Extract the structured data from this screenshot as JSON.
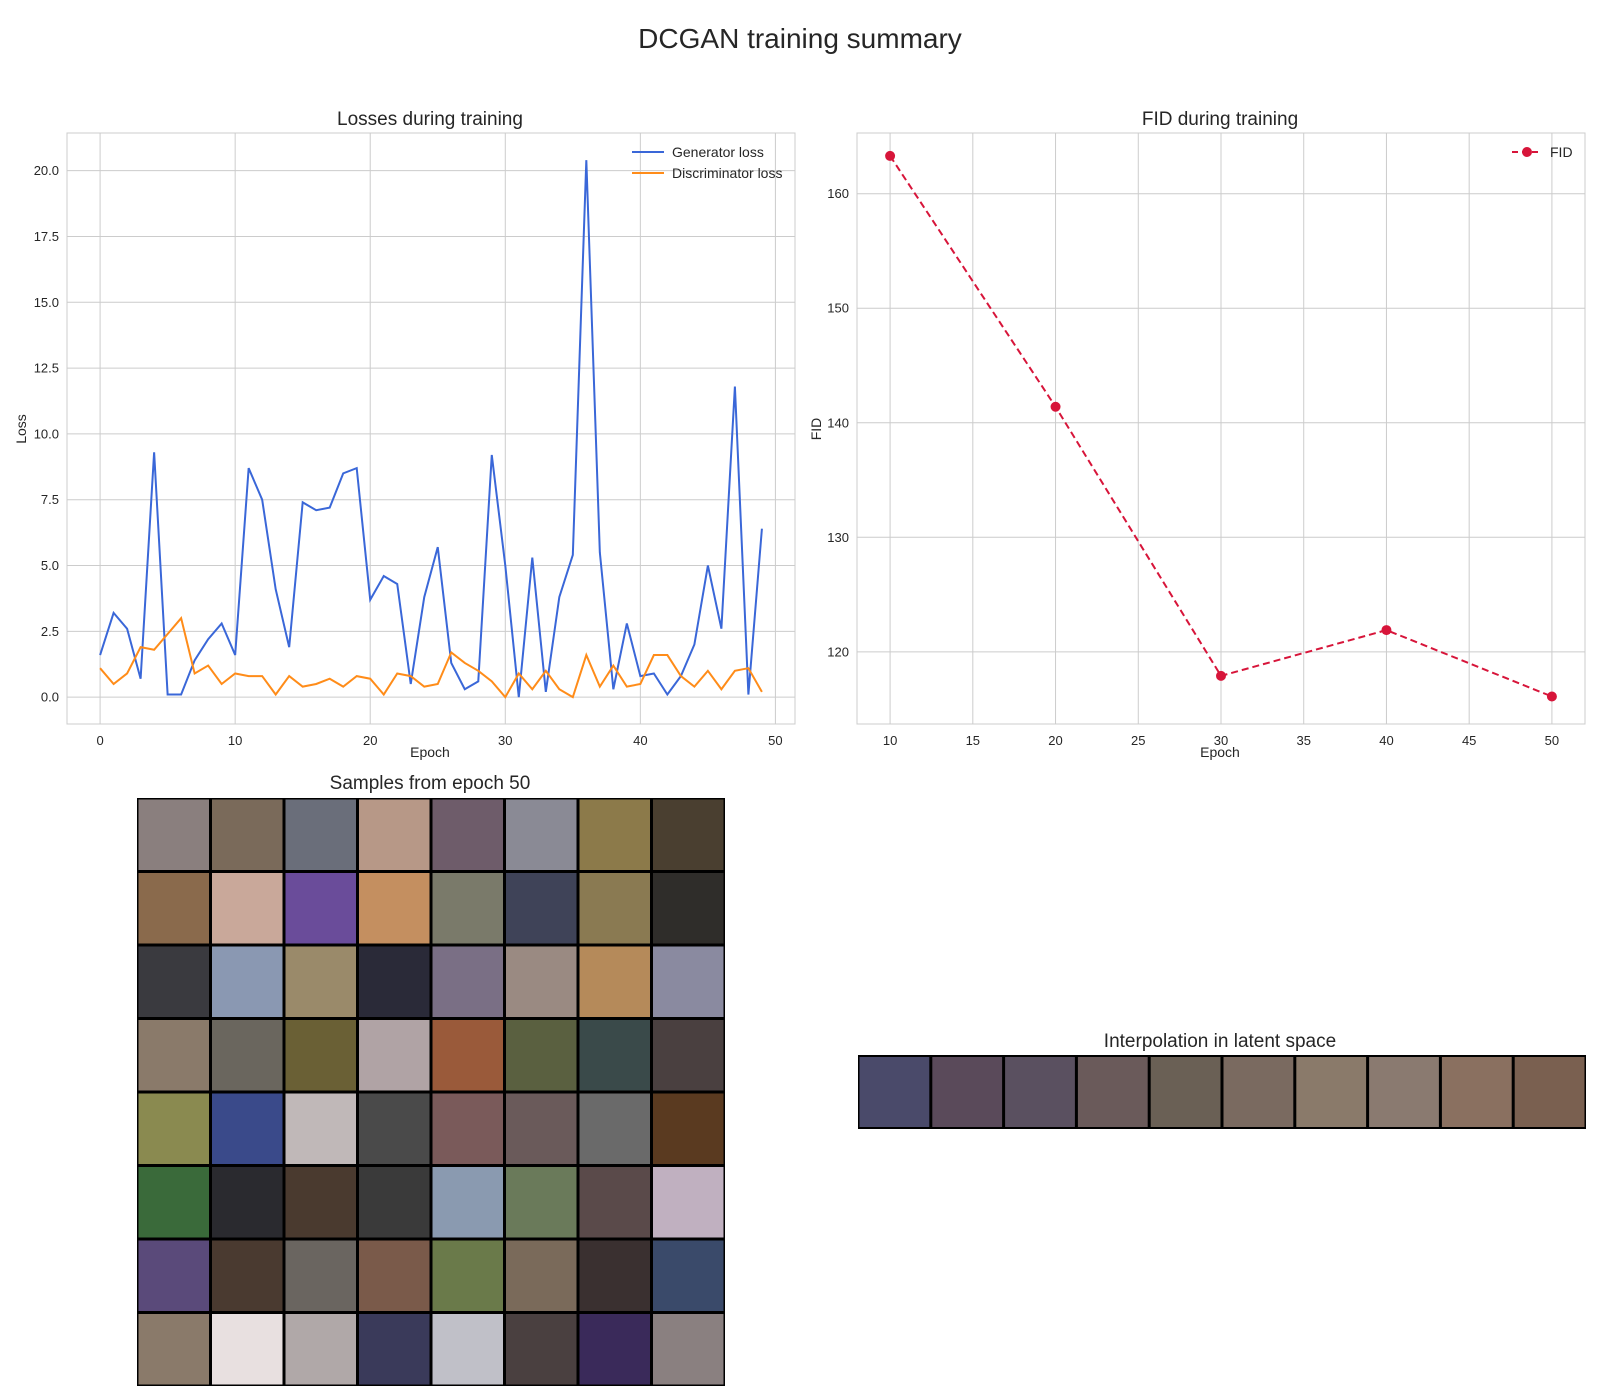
{
  "figure": {
    "title": "DCGAN training summary"
  },
  "chart_data": [
    {
      "type": "line",
      "title": "Losses during training",
      "xlabel": "Epoch",
      "ylabel": "Loss",
      "xlim": [
        -2.45,
        51.45
      ],
      "ylim": [
        -1.02,
        21.43
      ],
      "xticks": [
        0,
        10,
        20,
        30,
        40,
        50
      ],
      "xtick_labels": [
        "0",
        "10",
        "20",
        "30",
        "40",
        "50"
      ],
      "yticks": [
        0,
        2.5,
        5,
        7.5,
        10,
        12.5,
        15,
        17.5,
        20
      ],
      "ytick_labels": [
        "0.0",
        "2.5",
        "5.0",
        "7.5",
        "10.0",
        "12.5",
        "15.0",
        "17.5",
        "20.0"
      ],
      "grid": true,
      "legend": "upper-right",
      "x": [
        0,
        1,
        2,
        3,
        4,
        5,
        6,
        7,
        8,
        9,
        10,
        11,
        12,
        13,
        14,
        15,
        16,
        17,
        18,
        19,
        20,
        21,
        22,
        23,
        24,
        25,
        26,
        27,
        28,
        29,
        30,
        31,
        32,
        33,
        34,
        35,
        36,
        37,
        38,
        39,
        40,
        41,
        42,
        43,
        44,
        45,
        46,
        47,
        48,
        49
      ],
      "series": [
        {
          "name": "Generator loss",
          "color": "#3a67d8",
          "values": [
            1.6,
            3.2,
            2.6,
            0.7,
            9.3,
            0.1,
            0.1,
            1.4,
            2.2,
            2.8,
            1.6,
            8.7,
            7.5,
            4.1,
            1.9,
            7.4,
            7.1,
            7.2,
            8.5,
            8.7,
            3.7,
            4.6,
            4.3,
            0.5,
            3.8,
            5.7,
            1.3,
            0.3,
            0.6,
            9.2,
            5.0,
            0.0,
            5.3,
            0.2,
            3.8,
            5.4,
            20.4,
            5.5,
            0.3,
            2.8,
            0.8,
            0.9,
            0.1,
            0.8,
            2.0,
            5.0,
            2.6,
            11.8,
            0.1,
            6.4
          ]
        },
        {
          "name": "Discriminator loss",
          "color": "#ff8c19",
          "values": [
            1.1,
            0.5,
            0.9,
            1.9,
            1.8,
            2.4,
            3.0,
            0.9,
            1.2,
            0.5,
            0.9,
            0.8,
            0.8,
            0.1,
            0.8,
            0.4,
            0.5,
            0.7,
            0.4,
            0.8,
            0.7,
            0.1,
            0.9,
            0.8,
            0.4,
            0.5,
            1.7,
            1.3,
            1.0,
            0.6,
            0.0,
            0.9,
            0.3,
            1.0,
            0.3,
            0.0,
            1.6,
            0.4,
            1.2,
            0.4,
            0.5,
            1.6,
            1.6,
            0.8,
            0.4,
            1.0,
            0.3,
            1.0,
            1.1,
            0.2
          ]
        }
      ]
    },
    {
      "type": "line",
      "title": "FID during training",
      "xlabel": "Epoch",
      "ylabel": "FID",
      "xlim": [
        8.0,
        52.0
      ],
      "ylim": [
        113.7,
        165.3
      ],
      "xticks": [
        10,
        15,
        20,
        25,
        30,
        35,
        40,
        45,
        50
      ],
      "xtick_labels": [
        "10",
        "15",
        "20",
        "25",
        "30",
        "35",
        "40",
        "45",
        "50"
      ],
      "yticks": [
        120,
        130,
        140,
        150,
        160
      ],
      "ytick_labels": [
        "120",
        "130",
        "140",
        "150",
        "160"
      ],
      "grid": true,
      "legend": "upper-right",
      "x": [
        10,
        20,
        30,
        40,
        50
      ],
      "series": [
        {
          "name": "FID",
          "color": "#d7153a",
          "style": "dashed-markers",
          "values": [
            163.3,
            141.4,
            117.9,
            121.9,
            116.1
          ]
        }
      ]
    }
  ],
  "samples": {
    "title": "Samples from epoch 50",
    "rows": 8,
    "cols": 8,
    "tile_colors": [
      [
        "#8a7f7e",
        "#7a6a5a",
        "#6a6e7a",
        "#b79887",
        "#6e5c6a",
        "#8a8a95",
        "#8c7a4a",
        "#4a3f30"
      ],
      [
        "#8a6a4c",
        "#c9a89a",
        "#6a4c9a",
        "#c48f60",
        "#7a7a6a",
        "#3f4358",
        "#8a7a52",
        "#2f2d2a"
      ],
      [
        "#3a3a3f",
        "#8a98b2",
        "#9a8a6a",
        "#2a2a38",
        "#7a6f85",
        "#9a8a82",
        "#b58a5a",
        "#8a8aa0"
      ],
      [
        "#8a7a6a",
        "#6a665e",
        "#6a6035",
        "#b0a3a5",
        "#9a5a3a",
        "#5a6040",
        "#3a4a4a",
        "#4a4040"
      ],
      [
        "#8a8a50",
        "#3a4a8a",
        "#c0b8b8",
        "#4a4a4a",
        "#7a5a5a",
        "#6a5a5a",
        "#6a6a6a",
        "#5a3a20"
      ],
      [
        "#3a6a3a",
        "#2a2a2f",
        "#4a3a2f",
        "#3a3a3a",
        "#8a9ab0",
        "#6a7a5a",
        "#5a4a4a",
        "#c0b0c0"
      ],
      [
        "#5a4a7a",
        "#4a3a30",
        "#6a6560",
        "#7a5a4a",
        "#6a7a4a",
        "#7a6a5a",
        "#3a3030",
        "#3a4a6a"
      ],
      [
        "#8a7a6a",
        "#e8e0e0",
        "#b0a8a8",
        "#3a3a5a",
        "#c0c0c8",
        "#4a4040",
        "#3a2a5a",
        "#8a8080"
      ]
    ]
  },
  "interpolation": {
    "title": "Interpolation in latent space",
    "count": 10,
    "tile_colors": [
      "#4a4a6a",
      "#5a4a5a",
      "#5a5060",
      "#6a5a5a",
      "#6a6055",
      "#7a6a60",
      "#8a7a6a",
      "#8a7a70",
      "#8a7060",
      "#7a6050"
    ]
  }
}
